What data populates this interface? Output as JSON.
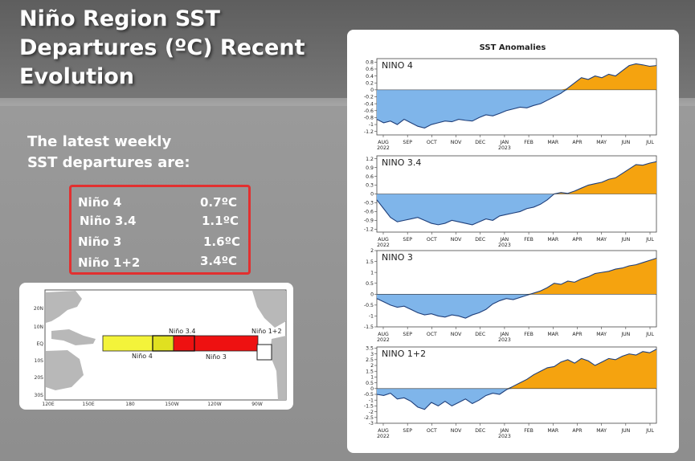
{
  "title": "Niño Region SST\nDepartures (ºC) Recent\nEvolution",
  "intro": "The latest weekly\nSST departures are:",
  "latest_values": [
    {
      "region": "Niño 4",
      "value": "0.7ºC"
    },
    {
      "region": "Niño 3.4",
      "value": "1.1ºC"
    },
    {
      "region": "Niño 3",
      "value": "1.6ºC"
    },
    {
      "region": "Niño 1+2",
      "value": "3.4ºC"
    }
  ],
  "map": {
    "lat_labels": [
      "20N",
      "10N",
      "EQ",
      "10S",
      "20S",
      "30S"
    ],
    "lon_labels": [
      "120E",
      "150E",
      "180",
      "150W",
      "120W",
      "90W"
    ],
    "regions": [
      {
        "name": "Niño 4",
        "color": "#f3f33a"
      },
      {
        "name": "Niño 3.4",
        "color": "#e0e020"
      },
      {
        "name": "Niño 3",
        "color": "#ee1111"
      },
      {
        "name": "Niño 1+2",
        "color": "#ffffff"
      }
    ]
  },
  "colors": {
    "negative": "#7fb5ea",
    "positive": "#f5a30f",
    "line": "#1f3f7a"
  },
  "chart_data": {
    "title": "SST Anomalies",
    "type": "area",
    "months": [
      "AUG",
      "SEP",
      "OCT",
      "NOV",
      "DEC",
      "JAN",
      "FEB",
      "MAR",
      "APR",
      "MAY",
      "JUN",
      "JUL"
    ],
    "year_labels": [
      "2022",
      "2023"
    ],
    "panels": [
      {
        "name": "NINO 4",
        "ylim": [
          -1.3,
          0.9
        ],
        "yticks": [
          "0.8",
          "0.6",
          "0.4",
          "0.2",
          "0",
          "-0.2",
          "-0.4",
          "-0.6",
          "-0.8",
          "-1",
          "-1.2"
        ],
        "tickvals": [
          0.8,
          0.6,
          0.4,
          0.2,
          0,
          -0.2,
          -0.4,
          -0.6,
          -0.8,
          -1,
          -1.2
        ],
        "values": [
          -0.85,
          -0.95,
          -0.9,
          -1.0,
          -0.85,
          -0.95,
          -1.05,
          -1.1,
          -1.0,
          -0.95,
          -0.9,
          -0.92,
          -0.85,
          -0.88,
          -0.9,
          -0.8,
          -0.72,
          -0.75,
          -0.68,
          -0.6,
          -0.55,
          -0.5,
          -0.52,
          -0.45,
          -0.4,
          -0.3,
          -0.2,
          -0.1,
          0.05,
          0.2,
          0.35,
          0.3,
          0.4,
          0.35,
          0.45,
          0.4,
          0.55,
          0.7,
          0.75,
          0.72,
          0.68,
          0.7
        ]
      },
      {
        "name": "NINO 3.4",
        "ylim": [
          -1.3,
          1.3
        ],
        "yticks": [
          "1.2",
          "0.9",
          "0.6",
          "0.3",
          "0",
          "-0.3",
          "-0.6",
          "-0.9",
          "-1.2"
        ],
        "tickvals": [
          1.2,
          0.9,
          0.6,
          0.3,
          0,
          -0.3,
          -0.6,
          -0.9,
          -1.2
        ],
        "values": [
          -0.2,
          -0.5,
          -0.8,
          -0.95,
          -0.9,
          -0.85,
          -0.8,
          -0.9,
          -1.0,
          -1.05,
          -1.0,
          -0.9,
          -0.95,
          -1.0,
          -1.05,
          -0.95,
          -0.85,
          -0.9,
          -0.75,
          -0.7,
          -0.65,
          -0.6,
          -0.5,
          -0.45,
          -0.35,
          -0.2,
          0.0,
          0.05,
          0.02,
          0.1,
          0.2,
          0.3,
          0.35,
          0.4,
          0.5,
          0.55,
          0.7,
          0.85,
          1.0,
          0.98,
          1.05,
          1.1
        ]
      },
      {
        "name": "NINO 3",
        "ylim": [
          -1.5,
          2.0
        ],
        "yticks": [
          "2",
          "1.5",
          "1",
          "0.5",
          "0",
          "-0.5",
          "-1",
          "-1.5"
        ],
        "tickvals": [
          2,
          1.5,
          1,
          0.5,
          0,
          -0.5,
          -1,
          -1.5
        ],
        "values": [
          -0.2,
          -0.35,
          -0.5,
          -0.6,
          -0.55,
          -0.7,
          -0.85,
          -0.95,
          -0.9,
          -1.0,
          -1.05,
          -0.95,
          -1.0,
          -1.1,
          -0.95,
          -0.85,
          -0.7,
          -0.45,
          -0.3,
          -0.2,
          -0.25,
          -0.15,
          -0.05,
          0.05,
          0.15,
          0.3,
          0.5,
          0.45,
          0.6,
          0.55,
          0.7,
          0.8,
          0.95,
          1.0,
          1.05,
          1.15,
          1.2,
          1.3,
          1.35,
          1.45,
          1.55,
          1.65
        ]
      },
      {
        "name": "NINO 1+2",
        "ylim": [
          -3.0,
          3.6
        ],
        "yticks": [
          "3.5",
          "3",
          "2.5",
          "2",
          "1.5",
          "1",
          "0.5",
          "0",
          "-0.5",
          "-1",
          "-1.5",
          "-2",
          "-2.5",
          "-3"
        ],
        "tickvals": [
          3.5,
          3,
          2.5,
          2,
          1.5,
          1,
          0.5,
          0,
          -0.5,
          -1,
          -1.5,
          -2,
          -2.5,
          -3
        ],
        "values": [
          -0.5,
          -0.6,
          -0.4,
          -0.9,
          -0.8,
          -1.1,
          -1.6,
          -1.8,
          -1.2,
          -1.5,
          -1.1,
          -1.5,
          -1.2,
          -0.9,
          -1.3,
          -1.0,
          -0.6,
          -0.4,
          -0.5,
          -0.1,
          0.2,
          0.5,
          0.8,
          1.2,
          1.5,
          1.8,
          1.9,
          2.3,
          2.5,
          2.2,
          2.6,
          2.4,
          2.0,
          2.3,
          2.6,
          2.5,
          2.8,
          3.0,
          2.9,
          3.2,
          3.1,
          3.4
        ]
      }
    ]
  }
}
